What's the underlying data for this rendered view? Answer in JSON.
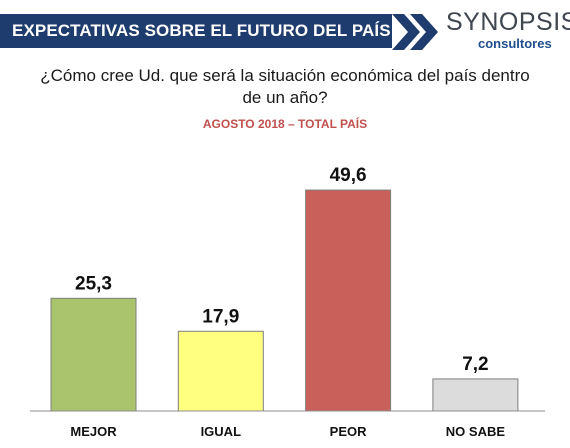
{
  "header": {
    "title": "EXPECTATIVAS SOBRE EL FUTURO DEL PAÍS",
    "band_color": "#1f3c6e"
  },
  "logo": {
    "name": "SYNOPSIS",
    "sub": "consultores",
    "icon": "double-chevron-icon"
  },
  "chart_data": {
    "type": "bar",
    "title": "¿Cómo cree Ud. que será la situación económica del país dentro de un año?",
    "subtitle": "AGOSTO 2018  – TOTAL PAÍS",
    "categories": [
      "MEJOR",
      "IGUAL",
      "PEOR",
      "NO SABE"
    ],
    "values": [
      25.3,
      17.9,
      49.6,
      7.2
    ],
    "value_labels": [
      "25,3",
      "17,9",
      "49,6",
      "7,2"
    ],
    "colors": [
      "#a9c46c",
      "#ffff80",
      "#c9605a",
      "#dcdcdc"
    ],
    "ylim": [
      0,
      55
    ],
    "grid": false,
    "legend": "none"
  }
}
